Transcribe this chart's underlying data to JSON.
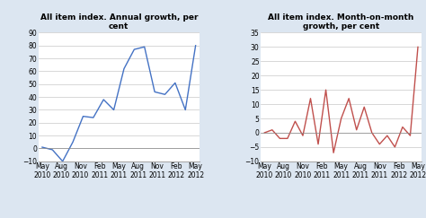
{
  "left_title": "All item index. Annual growth, per\ncent",
  "right_title": "All item index. Month-on-month\ngrowth, per cent",
  "x_labels": [
    "May\n2010",
    "Aug\n2010",
    "Nov\n2010",
    "Feb\n2011",
    "May\n2011",
    "Aug\n2011",
    "Nov\n2011",
    "Feb\n2012",
    "May\n2012"
  ],
  "left_data": [
    1,
    -1,
    -10,
    5,
    25,
    24,
    38,
    30,
    62,
    77,
    79,
    44,
    42,
    51,
    30,
    80
  ],
  "right_data": [
    0,
    1,
    -2,
    -2,
    4,
    -1,
    12,
    -4,
    15,
    -7,
    5,
    12,
    1,
    9,
    0,
    -4,
    -1,
    -5,
    2,
    -1,
    30
  ],
  "left_ylim": [
    -10,
    90
  ],
  "right_ylim": [
    -10,
    35
  ],
  "left_yticks": [
    -10,
    0,
    10,
    20,
    30,
    40,
    50,
    60,
    70,
    80,
    90
  ],
  "right_yticks": [
    -10,
    -5,
    0,
    5,
    10,
    15,
    20,
    25,
    30,
    35
  ],
  "left_color": "#4472c4",
  "right_color": "#c0504d",
  "fig_bg_color": "#dce6f1",
  "plot_bg_color": "#ffffff",
  "grid_color": "#c8c8c8",
  "tick_label_fontsize": 5.5,
  "title_fontsize": 6.5
}
